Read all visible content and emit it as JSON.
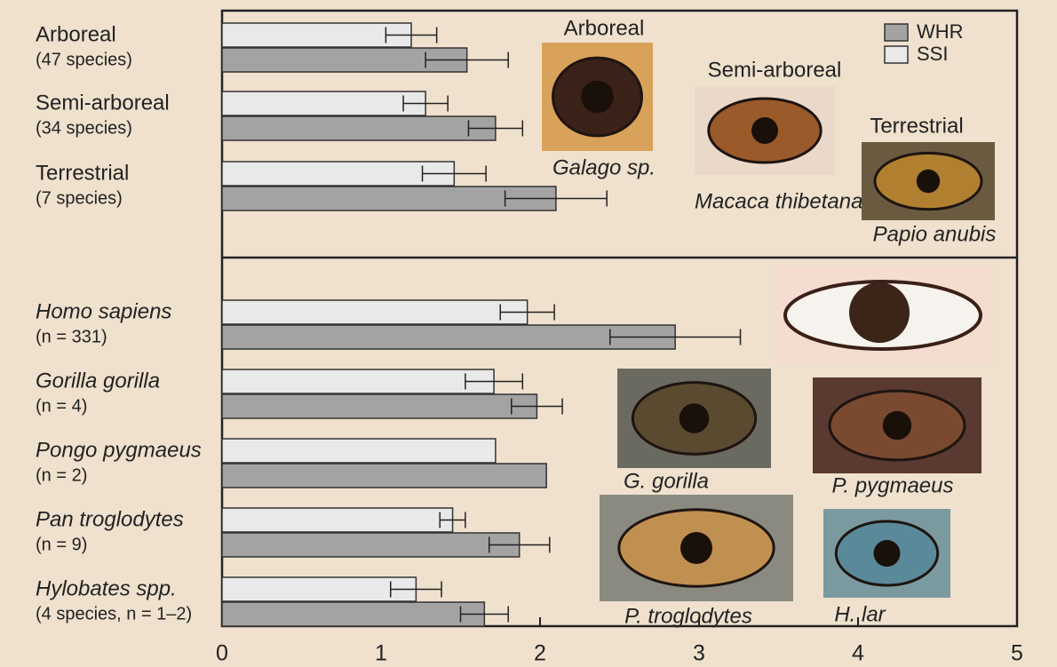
{
  "chart_data": {
    "type": "bar",
    "orientation": "horizontal",
    "categories": [
      "Arboreal",
      "Semi-arboreal",
      "Terrestrial",
      "Homo sapiens",
      "Gorilla gorilla",
      "Pongo pygmaeus",
      "Pan troglodytes",
      "Hylobates spp."
    ],
    "category_notes": [
      "(47 species)",
      "(34 species)",
      "(7 species)",
      "(n = 331)",
      "(n = 4)",
      "(n = 2)",
      "(n = 9)",
      "(4 species, n = 1–2)"
    ],
    "series": [
      {
        "name": "WHR",
        "color": "#a3a3a3",
        "values": [
          1.54,
          1.72,
          2.1,
          2.85,
          1.98,
          2.04,
          1.87,
          1.65
        ],
        "errors": [
          0.26,
          0.17,
          0.32,
          0.41,
          0.16,
          null,
          0.19,
          0.15
        ]
      },
      {
        "name": "SSI",
        "color": "#e9e9e9",
        "values": [
          1.19,
          1.28,
          1.46,
          1.92,
          1.71,
          1.72,
          1.45,
          1.22
        ],
        "errors": [
          0.16,
          0.14,
          0.2,
          0.17,
          0.18,
          null,
          0.08,
          0.16
        ]
      }
    ],
    "xlim": [
      0,
      5
    ],
    "xticks": [
      0,
      1,
      2,
      3,
      4,
      5
    ],
    "photos": [
      {
        "title": "Arboreal",
        "caption": "Galago sp."
      },
      {
        "title": "Semi-arboreal",
        "caption": "Macaca thibetana"
      },
      {
        "title": "Terrestrial",
        "caption": "Papio anubis"
      },
      {
        "caption": "G. gorilla"
      },
      {
        "caption": "P. pygmaeus"
      },
      {
        "caption": "P. troglodytes"
      },
      {
        "caption": "H. lar"
      }
    ]
  }
}
